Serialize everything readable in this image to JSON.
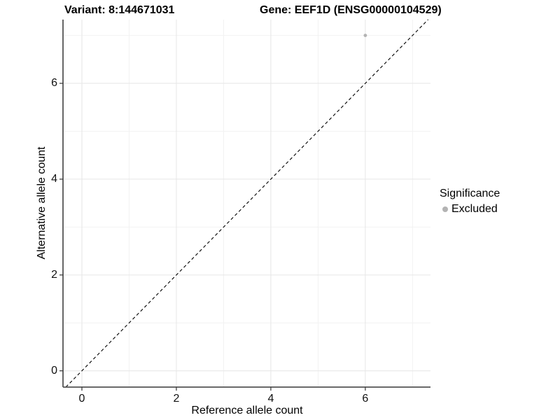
{
  "chart_data": {
    "type": "scatter",
    "title_left": "Variant: 8:144671031",
    "title_right": "Gene: EEF1D (ENSG00000104529)",
    "xlabel": "Reference allele count",
    "ylabel": "Alternative allele count",
    "xlim": [
      -0.4,
      7.38
    ],
    "ylim": [
      -0.34,
      7.33
    ],
    "x_major_ticks": [
      0,
      2,
      4,
      6
    ],
    "y_major_ticks": [
      0,
      2,
      4,
      6
    ],
    "x_minor_gridlines": [
      1,
      3,
      5,
      7
    ],
    "y_minor_gridlines": [
      1,
      3,
      5,
      7
    ],
    "grid": "on",
    "legend_position": "right",
    "series": [
      {
        "name": "Excluded",
        "marker": "circle",
        "color": "#b3b3b3",
        "points": [
          {
            "x": 6,
            "y": 7
          }
        ]
      }
    ],
    "reference_line": {
      "description": "identity line y = x",
      "slope": 1,
      "intercept": 0,
      "style": "dashed",
      "color": "#000000"
    },
    "legend": {
      "title": "Significance",
      "entries": [
        {
          "label": "Excluded",
          "color": "#b3b3b3"
        }
      ]
    },
    "colors": {
      "grid_major": "#e6e6e6",
      "grid_minor": "#f2f2f2",
      "axis_line": "#555555",
      "tick_mark": "#333333",
      "point": "#b3b3b3"
    }
  }
}
